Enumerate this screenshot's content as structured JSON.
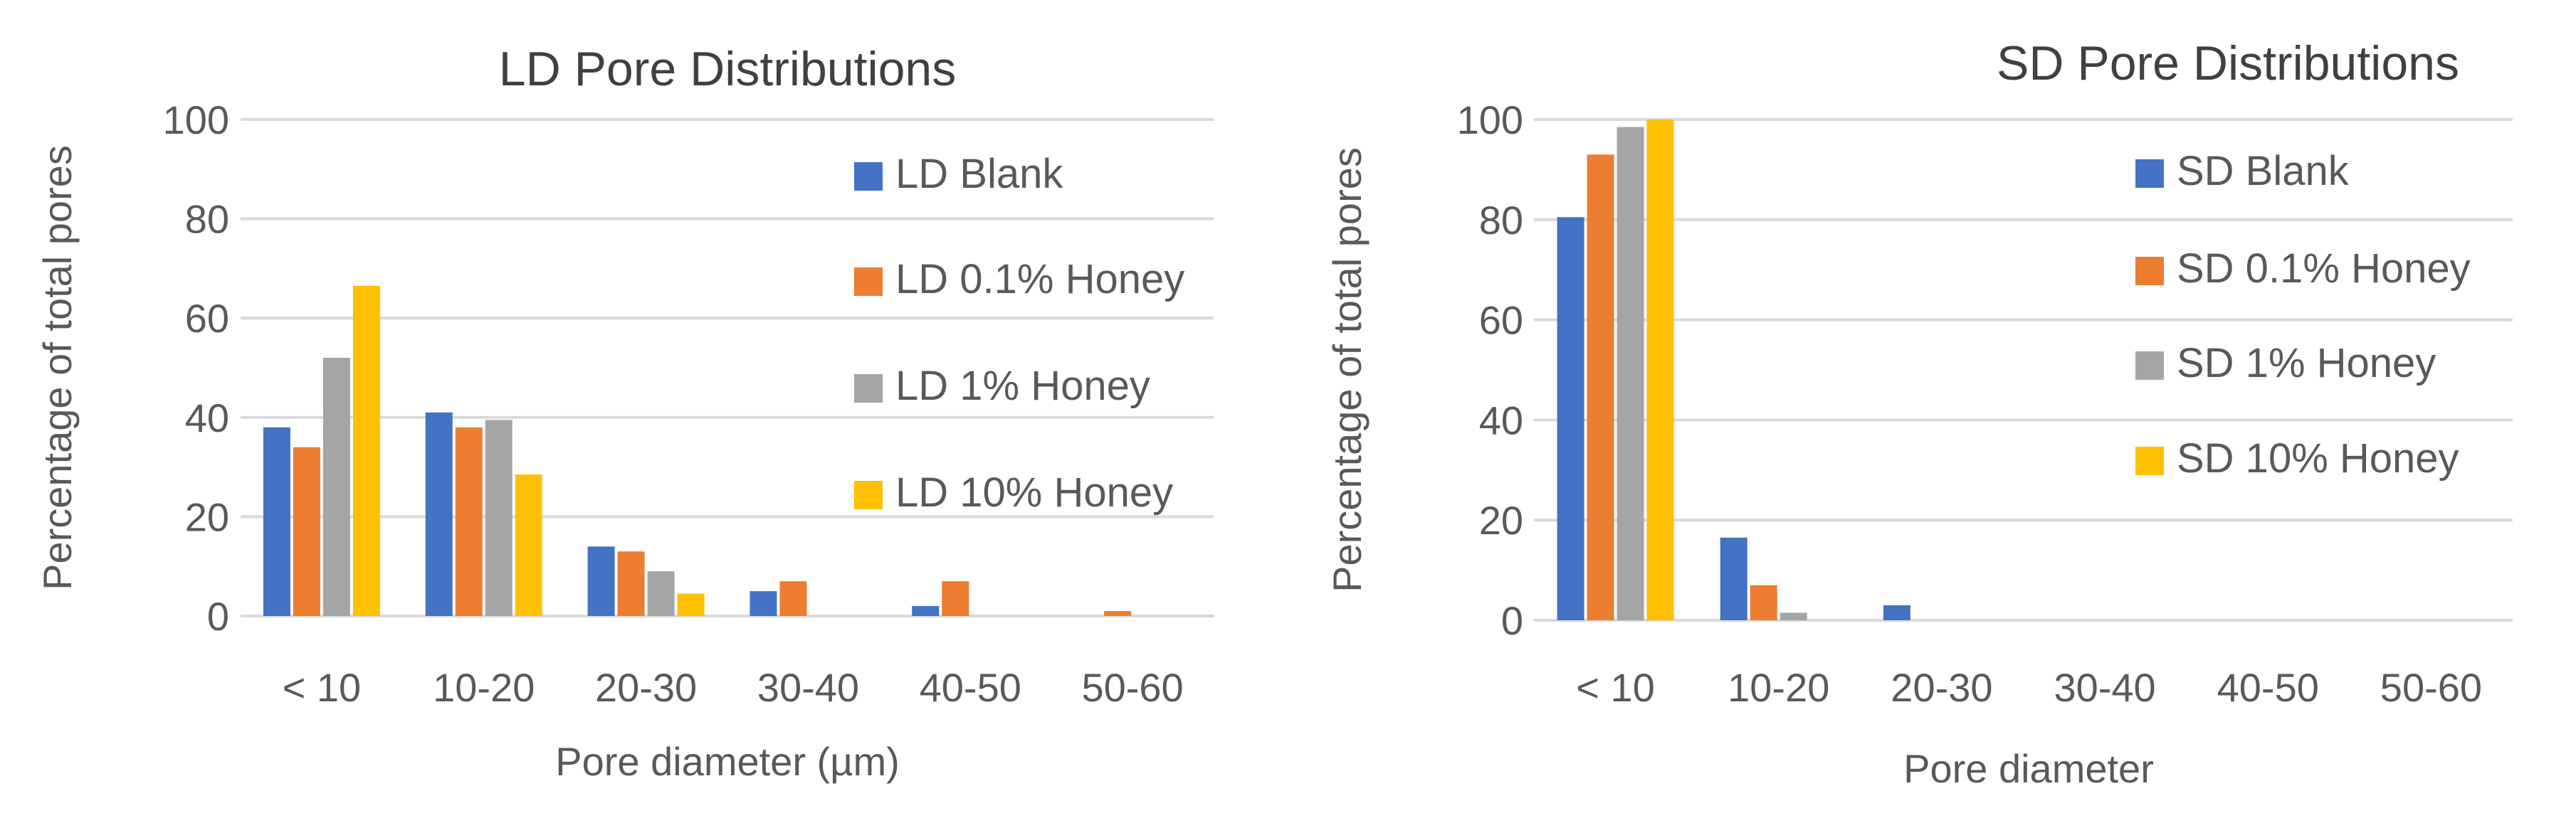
{
  "chart_data": [
    {
      "type": "bar",
      "title": "LD Pore Distributions",
      "xlabel": "Pore diameter (µm)",
      "ylabel": "Percentage of total pores",
      "ylim": [
        0,
        100
      ],
      "yticks": [
        0,
        20,
        40,
        60,
        80,
        100
      ],
      "grid": true,
      "legend_position": "right",
      "categories": [
        "< 10",
        "10-20",
        "20-30",
        "30-40",
        "40-50",
        "50-60"
      ],
      "series": [
        {
          "name": "LD Blank",
          "color": "#4472C4",
          "values": [
            38,
            41,
            14,
            5,
            2,
            0
          ]
        },
        {
          "name": "LD 0.1% Honey",
          "color": "#ED7D31",
          "values": [
            34,
            38,
            13,
            7,
            7,
            1
          ]
        },
        {
          "name": "LD 1% Honey",
          "color": "#A5A5A5",
          "values": [
            52,
            39.5,
            9,
            0,
            0,
            0
          ]
        },
        {
          "name": "LD 10% Honey",
          "color": "#FFC000",
          "values": [
            66.5,
            28.5,
            4.5,
            0,
            0,
            0
          ]
        }
      ]
    },
    {
      "type": "bar",
      "title": "SD Pore Distributions",
      "xlabel": "Pore diameter",
      "ylabel": "Percentage of total pores",
      "ylim": [
        0,
        100
      ],
      "yticks": [
        0,
        20,
        40,
        60,
        80,
        100
      ],
      "grid": true,
      "legend_position": "right",
      "categories": [
        "< 10",
        "10-20",
        "20-30",
        "30-40",
        "40-50",
        "50-60"
      ],
      "series": [
        {
          "name": "SD Blank",
          "color": "#4472C4",
          "values": [
            80.5,
            16.5,
            3,
            0,
            0,
            0
          ]
        },
        {
          "name": "SD 0.1% Honey",
          "color": "#ED7D31",
          "values": [
            93,
            7,
            0,
            0,
            0,
            0
          ]
        },
        {
          "name": "SD 1% Honey",
          "color": "#A5A5A5",
          "values": [
            98.5,
            1.5,
            0,
            0,
            0,
            0
          ]
        },
        {
          "name": "SD 10% Honey",
          "color": "#FFC000",
          "values": [
            100,
            0,
            0,
            0,
            0,
            0
          ]
        }
      ]
    }
  ]
}
